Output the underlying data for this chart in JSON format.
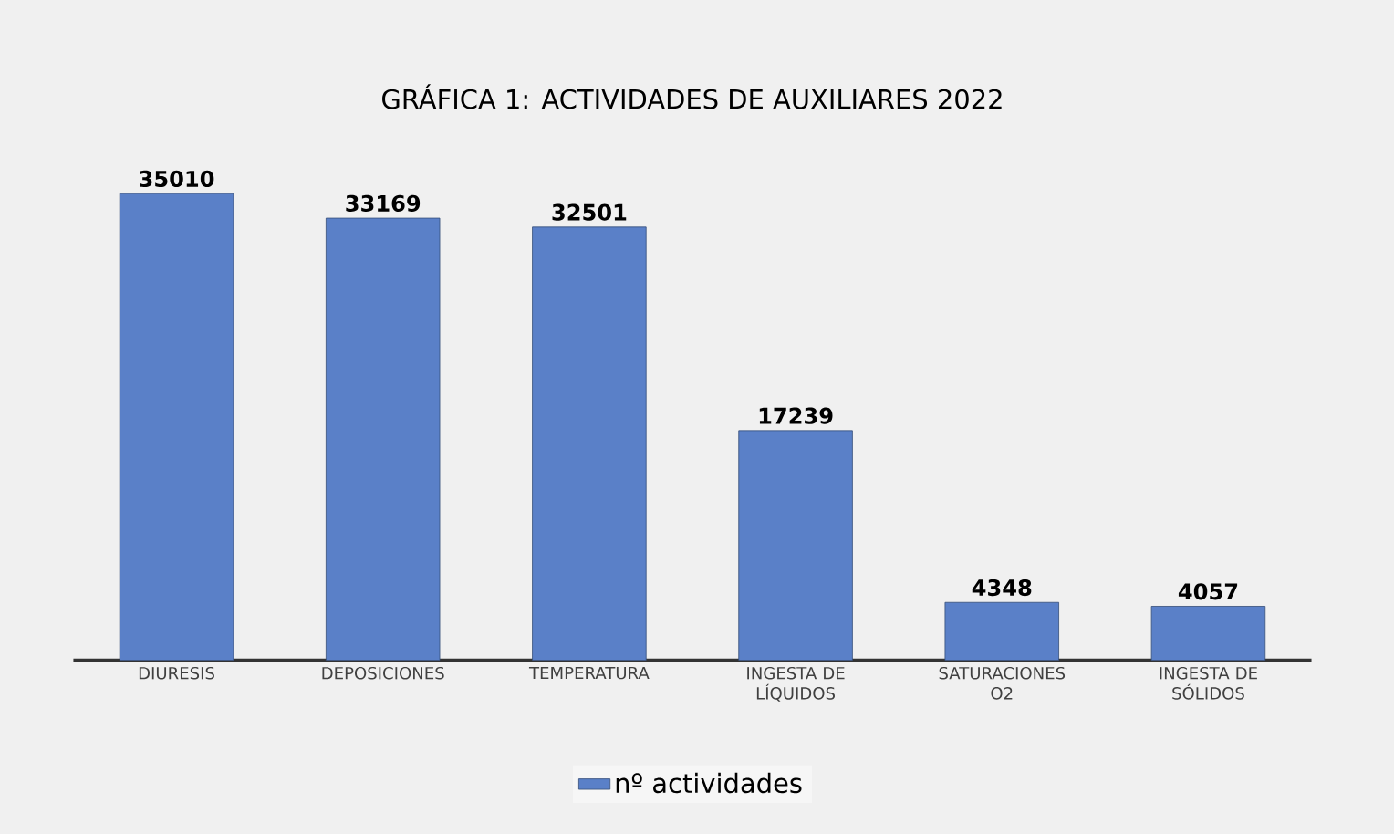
{
  "chart_data": {
    "type": "bar",
    "title": "GRÁFICA 1: ACTIVIDADES DE AUXILIARES 2022",
    "categories": [
      "DIURESIS",
      "DEPOSICIONES",
      "TEMPERATURA",
      "INGESTA DE LÍQUIDOS",
      "SATURACIONES O2",
      "INGESTA DE SÓLIDOS"
    ],
    "series": [
      {
        "name": "nº actividades",
        "color": "#5a80c8",
        "values": [
          35010,
          33169,
          32501,
          17239,
          4348,
          4057
        ]
      }
    ],
    "data_labels": true,
    "legend": "bottom"
  }
}
